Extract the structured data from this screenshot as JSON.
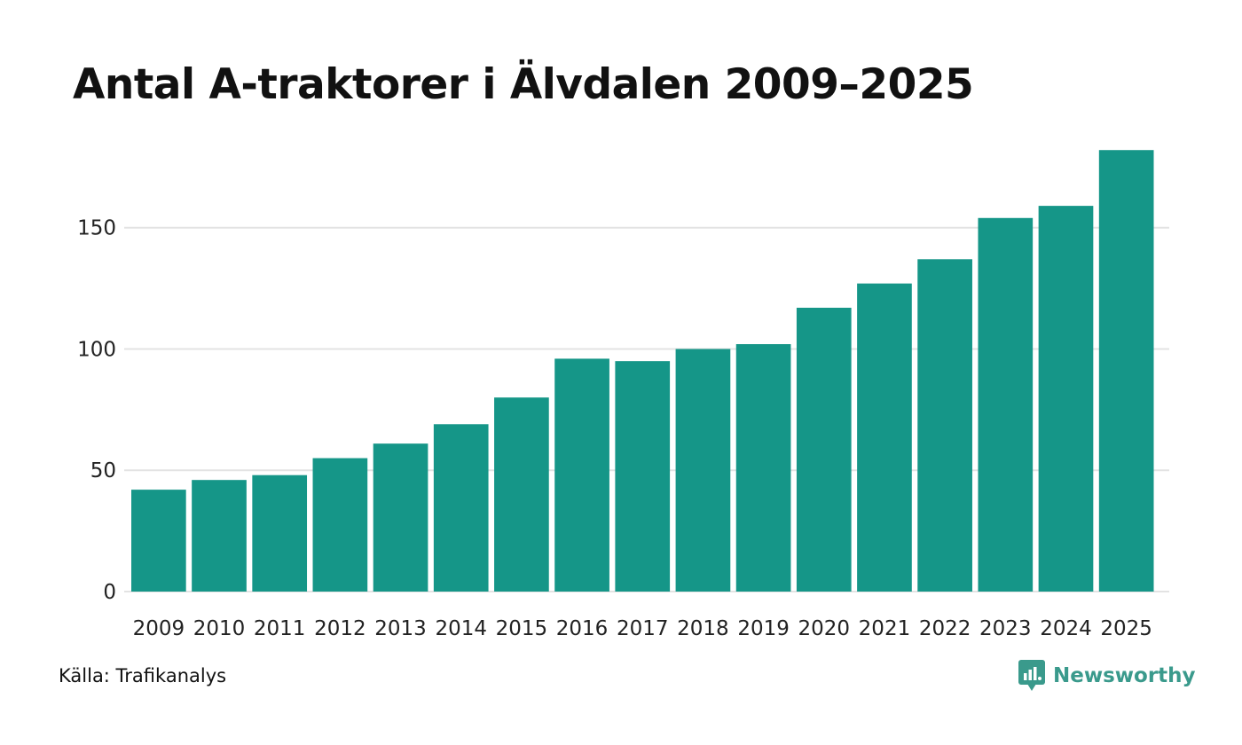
{
  "chart_data": {
    "type": "bar",
    "title": "Antal A-traktorer i Älvdalen 2009–2025",
    "categories": [
      "2009",
      "2010",
      "2011",
      "2012",
      "2013",
      "2014",
      "2015",
      "2016",
      "2017",
      "2018",
      "2019",
      "2020",
      "2021",
      "2022",
      "2023",
      "2024",
      "2025"
    ],
    "values": [
      42,
      46,
      48,
      55,
      61,
      69,
      80,
      96,
      95,
      100,
      102,
      117,
      127,
      137,
      154,
      159,
      182
    ],
    "ylim": [
      0,
      185
    ],
    "yticks": [
      0,
      50,
      100,
      150
    ],
    "ytick_labels": [
      "0",
      "50",
      "100",
      "150"
    ],
    "xlabel": "",
    "ylabel": "",
    "grid": true,
    "bar_color": "#159688",
    "grid_color": "#e3e3e3"
  },
  "footer": {
    "source": "Källa: Trafikanalys",
    "brand": "Newsworthy",
    "brand_color": "#3a9a8c"
  }
}
